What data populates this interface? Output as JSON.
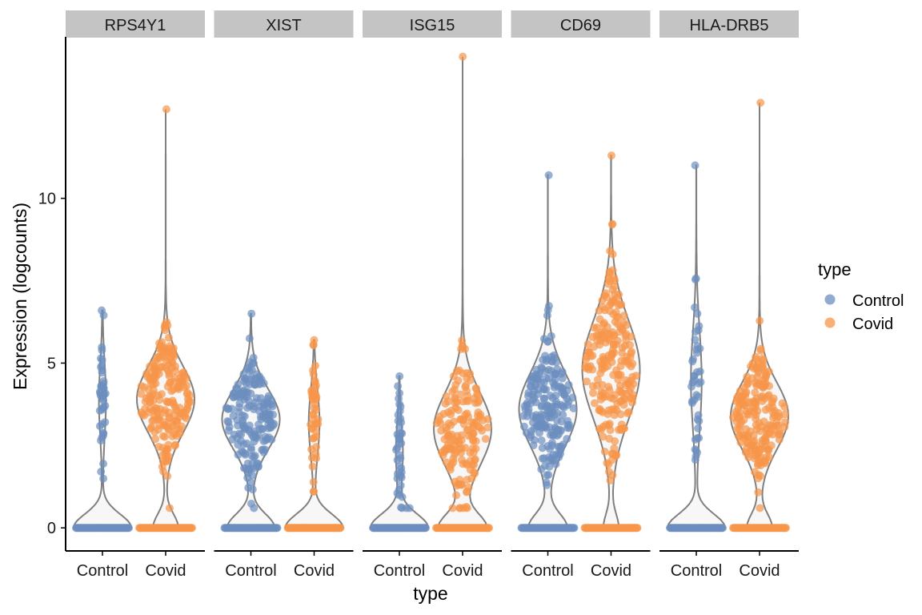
{
  "chart_data": {
    "type": "violin",
    "ylabel": "Expression (logcounts)",
    "xlabel": "type",
    "ylim": [
      -0.7,
      14.9
    ],
    "yticks": [
      0,
      5,
      10
    ],
    "categories": [
      "Control",
      "Covid"
    ],
    "legend": {
      "title": "type",
      "placement": "right",
      "entries": [
        {
          "label": "Control",
          "color": "#6c8ebf"
        },
        {
          "label": "Covid",
          "color": "#f7954a"
        }
      ]
    },
    "colors": {
      "Control": "#6c8ebf",
      "Covid": "#f7954a",
      "violin_stroke": "#808080",
      "strip_bg": "#c4c4c4"
    },
    "panels": [
      {
        "gene": "RPS4Y1",
        "groups": [
          {
            "type": "Control",
            "zero_fraction": 0.9,
            "max": 6.6,
            "nonzero_mean": 3.9,
            "nonzero_sd": 1.1,
            "n_nonzero": 40
          },
          {
            "type": "Covid",
            "zero_fraction": 0.3,
            "max": 12.7,
            "nonzero_mean": 3.9,
            "nonzero_sd": 1.0,
            "n_nonzero": 200
          }
        ]
      },
      {
        "gene": "XIST",
        "groups": [
          {
            "type": "Control",
            "zero_fraction": 0.45,
            "max": 6.5,
            "nonzero_mean": 3.3,
            "nonzero_sd": 0.9,
            "n_nonzero": 180
          },
          {
            "type": "Covid",
            "zero_fraction": 0.85,
            "max": 5.7,
            "nonzero_mean": 3.2,
            "nonzero_sd": 1.0,
            "n_nonzero": 45
          }
        ]
      },
      {
        "gene": "ISG15",
        "groups": [
          {
            "type": "Control",
            "zero_fraction": 0.9,
            "max": 4.6,
            "nonzero_mean": 2.3,
            "nonzero_sd": 0.9,
            "n_nonzero": 40
          },
          {
            "type": "Covid",
            "zero_fraction": 0.45,
            "max": 14.3,
            "nonzero_mean": 3.0,
            "nonzero_sd": 1.1,
            "n_nonzero": 160
          }
        ]
      },
      {
        "gene": "CD69",
        "groups": [
          {
            "type": "Control",
            "zero_fraction": 0.4,
            "max": 10.7,
            "nonzero_mean": 3.6,
            "nonzero_sd": 1.1,
            "n_nonzero": 200
          },
          {
            "type": "Covid",
            "zero_fraction": 0.2,
            "max": 11.3,
            "nonzero_mean": 4.8,
            "nonzero_sd": 1.5,
            "n_nonzero": 220
          }
        ]
      },
      {
        "gene": "HLA-DRB5",
        "groups": [
          {
            "type": "Control",
            "zero_fraction": 0.85,
            "max": 11.0,
            "nonzero_mean": 4.5,
            "nonzero_sd": 1.5,
            "n_nonzero": 40
          },
          {
            "type": "Covid",
            "zero_fraction": 0.3,
            "max": 12.9,
            "nonzero_mean": 3.4,
            "nonzero_sd": 1.0,
            "n_nonzero": 200
          }
        ]
      }
    ]
  }
}
